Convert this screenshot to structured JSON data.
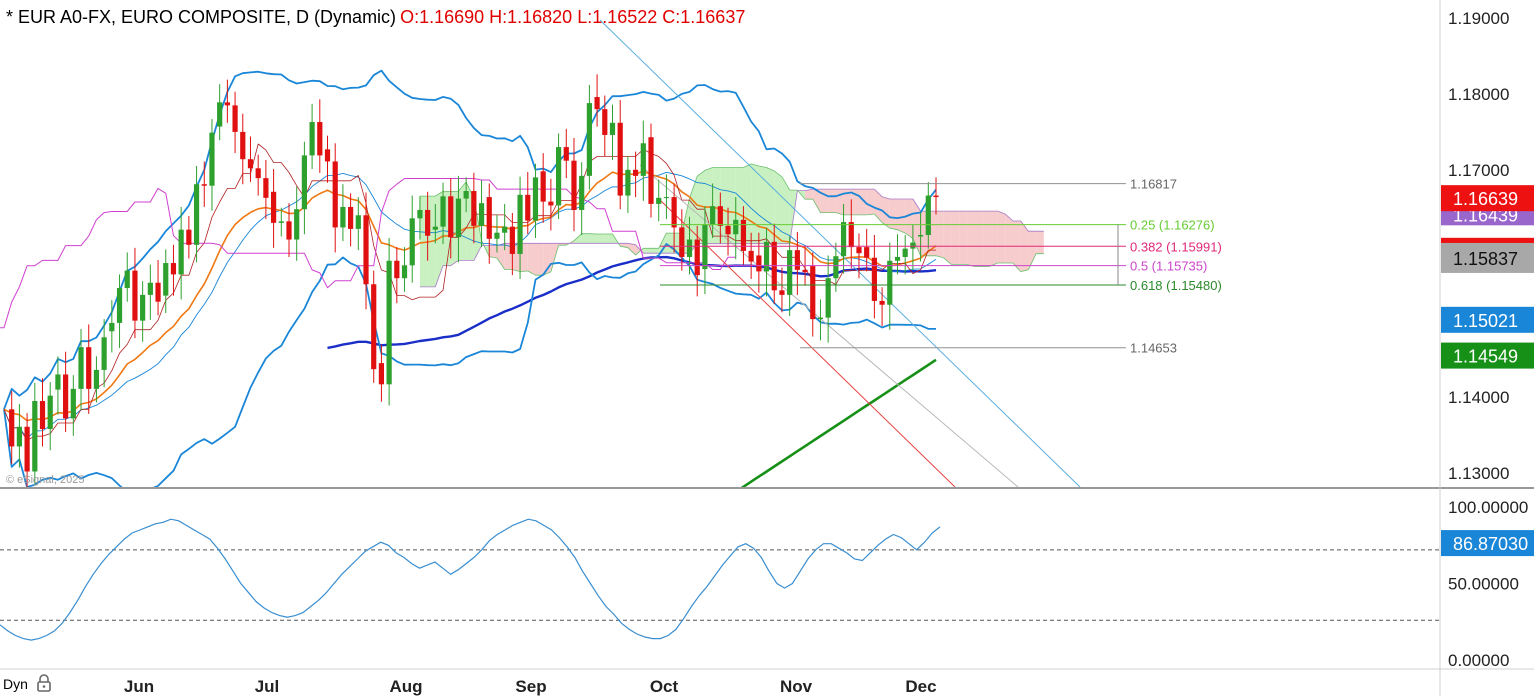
{
  "header": {
    "symbol": "* EUR A0-FX, EURO COMPOSITE, D (Dynamic)",
    "ohlc": "O:1.16690 H:1.16820 L:1.16522 C:1.16637"
  },
  "watermark": "© eSignal, 2025",
  "footer": {
    "mode_label": "Dyn",
    "lock_icon": "lock-icon"
  },
  "colors": {
    "up_candle": "#2ea02e",
    "down_candle": "#e01010",
    "bollinger": "#1a86d8",
    "sma_long": "#1a2ec8",
    "sma_slow": "#169016",
    "ema_fast": "#f07814",
    "stoch_k": "#d040d0",
    "kumo_bull": "#c8f0c0",
    "kumo_bear": "#f6cccc",
    "rsi": "#3a8ed0",
    "price_flag": "#ee1111"
  },
  "chart_data": [
    {
      "type": "candlestick",
      "title": "EUR A0-FX, EURO COMPOSITE, D (Dynamic)",
      "x_ticks": [
        "Jun",
        "Jul",
        "Aug",
        "Sep",
        "Oct",
        "Nov",
        "Dec"
      ],
      "y_ticks": [
        "1.19000",
        "1.18000",
        "1.17000",
        "1.14000",
        "1.13000"
      ],
      "ylim": [
        1.1284,
        1.1928
      ],
      "last_bar": {
        "open": 1.1669,
        "high": 1.1682,
        "low": 1.16522,
        "close": 1.16637
      },
      "close_series": [
        1.1384,
        1.1335,
        1.1361,
        1.1302,
        1.1395,
        1.1358,
        1.1402,
        1.143,
        1.1372,
        1.1411,
        1.1466,
        1.1411,
        1.1436,
        1.1479,
        1.1498,
        1.1544,
        1.1567,
        1.1501,
        1.1535,
        1.1551,
        1.1526,
        1.1577,
        1.1562,
        1.1621,
        1.1601,
        1.1681,
        1.1679,
        1.1749,
        1.1789,
        1.1785,
        1.175,
        1.1714,
        1.1702,
        1.1689,
        1.1663,
        1.163,
        1.1632,
        1.1608,
        1.1648,
        1.1719,
        1.1763,
        1.1719,
        1.1711,
        1.1624,
        1.1651,
        1.1622,
        1.164,
        1.1549,
        1.1437,
        1.1417,
        1.158,
        1.1557,
        1.1574,
        1.1636,
        1.1647,
        1.1613,
        1.1625,
        1.1665,
        1.1611,
        1.1662,
        1.1672,
        1.1626,
        1.1656,
        1.1609,
        1.1617,
        1.1625,
        1.1589,
        1.1667,
        1.1633,
        1.169,
        1.1658,
        1.1653,
        1.173,
        1.1712,
        1.1647,
        1.1692,
        1.1788,
        1.178,
        1.1746,
        1.1762,
        1.1666,
        1.17,
        1.1692,
        1.1735,
        1.1655,
        1.1663,
        1.1664,
        1.1624,
        1.1585,
        1.1608,
        1.1561,
        1.1628,
        1.1652,
        1.1626,
        1.1615,
        1.1634,
        1.1593,
        1.1579,
        1.1566,
        1.1605,
        1.1541,
        1.1535,
        1.1594,
        1.1568,
        1.1565,
        1.1503,
        1.1505,
        1.1557,
        1.1586,
        1.1631,
        1.1598,
        1.159,
        1.1584,
        1.1527,
        1.1522,
        1.158,
        1.1585,
        1.1596,
        1.1604,
        1.1614,
        1.1666,
        1.1664
      ],
      "fib_levels": [
        {
          "label": "1.16817",
          "value": 1.16817
        },
        {
          "label": "0.25 (1.16276)",
          "value": 1.16276
        },
        {
          "label": "0.382 (1.15991)",
          "value": 1.15991
        },
        {
          "label": "0.5 (1.15735)",
          "value": 1.15735
        },
        {
          "label": "0.618 (1.15480)",
          "value": 1.1548
        },
        {
          "label": "1.14653",
          "value": 1.14653
        }
      ],
      "price_flags": [
        {
          "label": "1.16639",
          "value": 1.16639,
          "color": "#ee1111"
        },
        {
          "label": "1.16439",
          "value": 1.16439,
          "color": "#9966cc"
        },
        {
          "label": "",
          "value": 1.1605,
          "color": "#ee1111"
        },
        {
          "label": "1.15837",
          "value": 1.15837,
          "color": "#a8a8a8"
        },
        {
          "label": "1.15021",
          "value": 1.15021,
          "color": "#1a86d8"
        },
        {
          "label": "1.14549",
          "value": 1.14549,
          "color": "#169016"
        }
      ]
    },
    {
      "type": "line",
      "title": "RSI",
      "y_ticks": [
        "100.00000",
        "50.00000",
        "0.00000"
      ],
      "ylim": [
        0,
        100
      ],
      "reference_lines": [
        72,
        26
      ],
      "last_value": {
        "label": "86.87030",
        "value": 86.8703
      },
      "rsi_series": [
        23,
        19,
        16,
        14,
        13,
        14,
        16,
        19,
        24,
        31,
        39,
        48,
        56,
        63,
        69,
        74,
        79,
        83,
        85,
        87,
        89,
        90,
        92,
        91,
        88,
        85,
        82,
        79,
        73,
        66,
        58,
        50,
        44,
        38,
        34,
        31,
        29,
        28,
        29,
        31,
        35,
        39,
        44,
        50,
        56,
        61,
        66,
        71,
        74,
        77,
        75,
        70,
        67,
        63,
        60,
        62,
        64,
        60,
        56,
        59,
        63,
        67,
        72,
        78,
        82,
        85,
        88,
        90,
        92,
        91,
        88,
        85,
        80,
        74,
        67,
        58,
        50,
        42,
        35,
        30,
        24,
        20,
        17,
        15,
        14,
        14,
        16,
        20,
        27,
        35,
        42,
        48,
        55,
        62,
        68,
        74,
        76,
        73,
        67,
        58,
        50,
        47,
        50,
        58,
        66,
        72,
        76,
        76,
        73,
        70,
        66,
        65,
        70,
        75,
        79,
        82,
        80,
        76,
        72,
        77,
        83,
        87
      ]
    }
  ]
}
